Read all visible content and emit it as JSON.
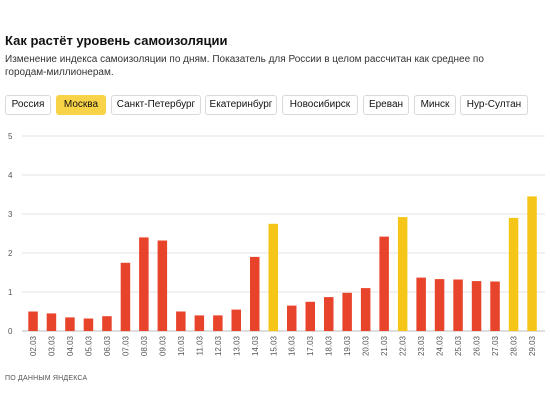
{
  "header": {
    "title": "Как растёт уровень самоизоляции",
    "subtitle": "Изменение индекса самоизоляции по дням. Показатель для России в целом рассчитан как среднее по городам-миллионерам."
  },
  "tabs": [
    {
      "label": "Россия",
      "active": false
    },
    {
      "label": "Москва",
      "active": true
    },
    {
      "label": "Санкт-Петербург",
      "active": false
    },
    {
      "label": "Екатеринбург",
      "active": false
    },
    {
      "label": "Новосибирск",
      "active": false
    },
    {
      "label": "Ереван",
      "active": false
    },
    {
      "label": "Минск",
      "active": false
    },
    {
      "label": "Нур-Султан",
      "active": false
    }
  ],
  "chart_data": {
    "type": "bar",
    "categories": [
      "02.03",
      "03.03",
      "04.03",
      "05.03",
      "06.03",
      "07.03",
      "08.03",
      "09.03",
      "10.03",
      "11.03",
      "12.03",
      "13.03",
      "14.03",
      "15.03",
      "16.03",
      "17.03",
      "18.03",
      "19.03",
      "20.03",
      "21.03",
      "22.03",
      "23.03",
      "24.03",
      "25.03",
      "26.03",
      "27.03",
      "28.03",
      "29.03"
    ],
    "values": [
      0.5,
      0.45,
      0.35,
      0.32,
      0.38,
      1.75,
      2.4,
      2.32,
      0.5,
      0.4,
      0.4,
      0.55,
      1.9,
      2.75,
      0.65,
      0.75,
      0.87,
      0.98,
      1.1,
      2.42,
      2.92,
      1.37,
      1.33,
      1.32,
      1.28,
      1.27,
      2.9,
      3.45
    ],
    "highlight": [
      false,
      false,
      false,
      false,
      false,
      false,
      false,
      false,
      false,
      false,
      false,
      false,
      false,
      true,
      false,
      false,
      false,
      false,
      false,
      false,
      true,
      false,
      false,
      false,
      false,
      false,
      true,
      true
    ],
    "yticks": [
      0,
      1,
      2,
      3,
      4,
      5
    ],
    "ylim": [
      0,
      5
    ],
    "grid": true,
    "colors": {
      "default": "#e8442c",
      "highlight": "#f5c518",
      "grid": "#e3e3e3"
    }
  },
  "footer": {
    "source": "ПО ДАННЫМ ЯНДЕКСА"
  }
}
